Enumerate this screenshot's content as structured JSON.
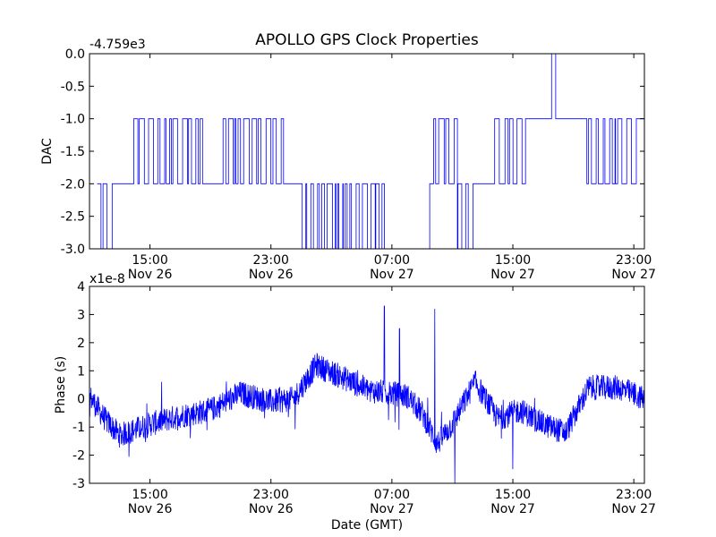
{
  "figure": {
    "title": "APOLLO GPS Clock Properties",
    "xlabel": "Date (GMT)"
  },
  "chart_data": [
    {
      "type": "line",
      "ylabel": "DAC",
      "offset_label": "-4.759e3",
      "ylim": [
        -3.0,
        0.0
      ],
      "yticks": [
        "0.0",
        "-0.5",
        "-1.0",
        "-1.5",
        "-2.0",
        "-2.5",
        "-3.0"
      ],
      "xticks": [
        {
          "time": "15:00",
          "date": "Nov 26"
        },
        {
          "time": "23:00",
          "date": "Nov 26"
        },
        {
          "time": "07:00",
          "date": "Nov 27"
        },
        {
          "time": "15:00",
          "date": "Nov 27"
        },
        {
          "time": "23:00",
          "date": "Nov 27"
        }
      ],
      "grid": false,
      "line_color": "#0000ff",
      "segments": [
        {
          "from": "11:30 Nov 26",
          "to": "12:30 Nov 26",
          "levels": [
            -3,
            -2
          ],
          "toggling": true
        },
        {
          "from": "12:30 Nov 26",
          "to": "13:40 Nov 26",
          "levels": [
            -2
          ],
          "toggling": false
        },
        {
          "from": "13:40 Nov 26",
          "to": "18:40 Nov 26",
          "levels": [
            -2,
            -1
          ],
          "toggling": true
        },
        {
          "from": "18:40 Nov 26",
          "to": "19:30 Nov 26",
          "levels": [
            -2
          ],
          "toggling": false
        },
        {
          "from": "19:30 Nov 26",
          "to": "23:50 Nov 26",
          "levels": [
            -2,
            -1
          ],
          "toggling": true
        },
        {
          "from": "23:50 Nov 26",
          "to": "01:00 Nov 27",
          "levels": [
            -2
          ],
          "toggling": false
        },
        {
          "from": "01:00 Nov 27",
          "to": "06:30 Nov 27",
          "levels": [
            -3,
            -2
          ],
          "toggling": true
        },
        {
          "from": "06:30 Nov 27",
          "to": "09:30 Nov 27",
          "levels": [
            -3
          ],
          "toggling": false
        },
        {
          "from": "09:30 Nov 27",
          "to": "11:20 Nov 27",
          "levels": [
            -2,
            -1
          ],
          "toggling": true
        },
        {
          "from": "11:20 Nov 27",
          "to": "12:30 Nov 27",
          "levels": [
            -3,
            -2
          ],
          "toggling": true
        },
        {
          "from": "12:30 Nov 27",
          "to": "13:40 Nov 27",
          "levels": [
            -2
          ],
          "toggling": false
        },
        {
          "from": "13:40 Nov 27",
          "to": "16:00 Nov 27",
          "levels": [
            -2,
            -1
          ],
          "toggling": true
        },
        {
          "from": "16:00 Nov 27",
          "to": "17:30 Nov 27",
          "levels": [
            -1
          ],
          "toggling": false
        },
        {
          "from": "17:30 Nov 27",
          "to": "17:50 Nov 27",
          "levels": [
            -1,
            0
          ],
          "toggling": true
        },
        {
          "from": "17:50 Nov 27",
          "to": "19:50 Nov 27",
          "levels": [
            -1
          ],
          "toggling": false
        },
        {
          "from": "19:50 Nov 27",
          "to": "23:10 Nov 27",
          "levels": [
            -2,
            -1
          ],
          "toggling": true
        },
        {
          "from": "23:10 Nov 27",
          "to": "23:40 Nov 27",
          "levels": [
            -1
          ],
          "toggling": false
        }
      ]
    },
    {
      "type": "line",
      "ylabel": "Phase (s)",
      "offset_label": "x1e-8",
      "ylim": [
        -3,
        4
      ],
      "yticks": [
        "4",
        "3",
        "2",
        "1",
        "0",
        "-1",
        "-2",
        "-3"
      ],
      "xticks": [
        {
          "time": "15:00",
          "date": "Nov 26"
        },
        {
          "time": "23:00",
          "date": "Nov 26"
        },
        {
          "time": "07:00",
          "date": "Nov 27"
        },
        {
          "time": "15:00",
          "date": "Nov 27"
        },
        {
          "time": "23:00",
          "date": "Nov 27"
        }
      ],
      "grid": false,
      "line_color": "#0000ff",
      "trend": {
        "x": [
          "11:00 Nov 26",
          "12:00 Nov 26",
          "13:00 Nov 26",
          "15:00 Nov 26",
          "17:00 Nov 26",
          "19:00 Nov 26",
          "21:00 Nov 26",
          "23:00 Nov 26",
          "00:30 Nov 27",
          "02:00 Nov 27",
          "04:00 Nov 27",
          "05:30 Nov 27",
          "07:00 Nov 27",
          "08:00 Nov 27",
          "09:00 Nov 27",
          "10:00 Nov 27",
          "11:00 Nov 27",
          "12:30 Nov 27",
          "14:00 Nov 27",
          "15:30 Nov 27",
          "17:00 Nov 27",
          "18:30 Nov 27",
          "20:00 Nov 27",
          "22:00 Nov 27",
          "23:40 Nov 27"
        ],
        "y": [
          0.1,
          -0.7,
          -1.3,
          -0.9,
          -0.6,
          -0.4,
          0.2,
          -0.1,
          0.0,
          1.2,
          0.7,
          0.3,
          0.2,
          0.1,
          -0.5,
          -1.6,
          -0.9,
          0.6,
          -0.7,
          -0.4,
          -0.9,
          -1.2,
          0.4,
          0.4,
          0.0
        ]
      },
      "noise_amplitude": 0.45,
      "spikes": [
        {
          "x": "06:30 Nov 27",
          "y": 3.3
        },
        {
          "x": "07:30 Nov 27",
          "y": 2.5
        },
        {
          "x": "09:50 Nov 27",
          "y": 3.2
        },
        {
          "x": "11:10 Nov 27",
          "y": -3.0
        },
        {
          "x": "15:00 Nov 27",
          "y": -2.5
        }
      ]
    }
  ]
}
